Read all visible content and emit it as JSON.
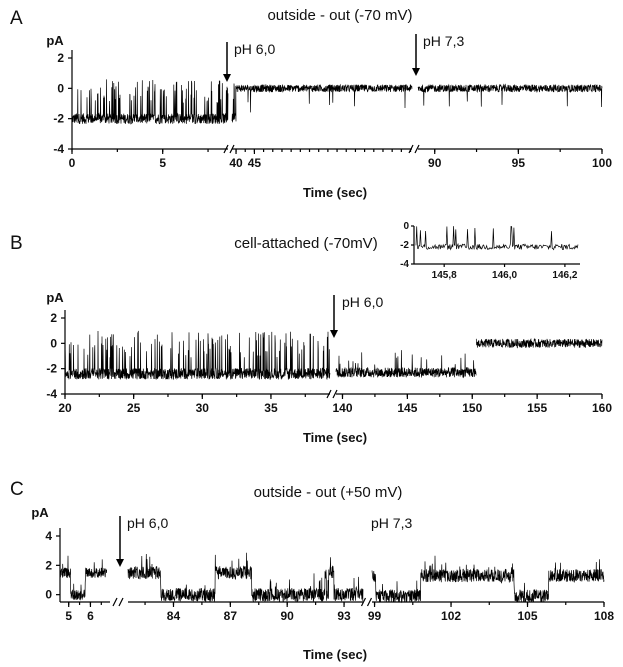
{
  "chart_data": [
    {
      "type": "line",
      "panel": "A",
      "title": "outside - out (-70 mV)",
      "ylabel": "pA",
      "xlabel": "Time (sec)",
      "ylim": [
        -4,
        2
      ],
      "y_ticks": [
        2,
        0,
        -2,
        -4
      ],
      "x_segments": [
        {
          "range": [
            0,
            8.6
          ],
          "ticks": [
            0,
            5
          ]
        },
        {
          "range": [
            38.9,
            87.9
          ],
          "ticks": [
            40,
            45
          ]
        },
        {
          "range": [
            89.0,
            100
          ],
          "ticks": [
            90,
            95,
            100
          ]
        }
      ],
      "series": [
        {
          "segments": [
            {
              "from": 0,
              "to": 8.6,
              "baseline": -2.0,
              "noise": 0.35,
              "events": "openings",
              "event_height": 2.0
            },
            {
              "from": 38.9,
              "to": 40.0,
              "baseline": -2.0,
              "noise": 0.35,
              "events": "openings",
              "event_height": 2.0
            },
            {
              "from": 40.0,
              "to": 87.9,
              "baseline": 0.0,
              "noise": 0.25,
              "events": "sparse_down",
              "event_height": 1.5
            },
            {
              "from": 89.0,
              "to": 100,
              "baseline": 0.0,
              "noise": 0.25,
              "events": "sparse_down",
              "event_height": 1.2
            }
          ]
        }
      ],
      "annotations": [
        {
          "label": "pH 6,0",
          "x": 38.5
        },
        {
          "label": "pH 7,3",
          "x": 88.0
        }
      ]
    },
    {
      "type": "line",
      "panel": "B",
      "title": "cell-attached (-70mV)",
      "ylabel": "pA",
      "xlabel": "Time (sec)",
      "ylim": [
        -4,
        2
      ],
      "y_ticks": [
        2,
        0,
        -2,
        -4
      ],
      "x_segments": [
        {
          "range": [
            20,
            39.3
          ],
          "ticks": [
            20,
            25,
            30,
            35
          ]
        },
        {
          "range": [
            139.5,
            160
          ],
          "ticks": [
            140,
            145,
            150,
            155,
            160
          ]
        }
      ],
      "series": [
        {
          "segments": [
            {
              "from": 20,
              "to": 39.3,
              "baseline": -2.4,
              "noise": 0.45,
              "events": "openings",
              "event_height": 2.6
            },
            {
              "from": 139.5,
              "to": 150.3,
              "baseline": -2.3,
              "noise": 0.4,
              "events": "sparse_up",
              "event_height": 1.2
            },
            {
              "from": 150.3,
              "to": 160,
              "baseline": 0.0,
              "noise": 0.35,
              "events": "none",
              "event_height": 0
            }
          ]
        }
      ],
      "annotations": [
        {
          "label": "pH 6,0",
          "x": 139.0
        }
      ],
      "inset": {
        "xlim": [
          145.7,
          146.25
        ],
        "ylim": [
          -4,
          0
        ],
        "x_ticks": [
          145.8,
          146.0,
          146.2
        ],
        "x_tick_labels": [
          "145,8",
          "146,0",
          "146,2"
        ],
        "y_ticks": [
          0,
          -2,
          -4
        ],
        "baseline": -2.2,
        "noise": 0.3
      }
    },
    {
      "type": "line",
      "panel": "C",
      "title": "outside - out (+50 mV)",
      "ylabel": "pA",
      "xlabel": "Time (sec)",
      "ylim": [
        -0.5,
        4
      ],
      "y_ticks": [
        4,
        2,
        0
      ],
      "x_segments": [
        {
          "range": [
            4.6,
            6.9
          ],
          "ticks": [
            5,
            6
          ]
        },
        {
          "range": [
            81.6,
            94.0
          ],
          "ticks": [
            84,
            87,
            90,
            93
          ]
        },
        {
          "range": [
            98.9,
            108
          ],
          "ticks": [
            99,
            102,
            105,
            108
          ]
        }
      ],
      "series": [
        {
          "segments": [
            {
              "from": 4.6,
              "to": 6.75,
              "baseline": 1.5,
              "noise": 0.35,
              "events": "bursts",
              "event_height": 1.5
            },
            {
              "from": 81.6,
              "to": 94.0,
              "baseline": 1.5,
              "noise": 0.45,
              "events": "bursts",
              "event_height": 1.5
            },
            {
              "from": 98.9,
              "to": 108,
              "baseline": 1.3,
              "noise": 0.45,
              "events": "bursts",
              "event_height": 1.4
            }
          ]
        }
      ],
      "annotations": [
        {
          "label": "pH 6,0",
          "x": 80.0
        },
        {
          "label": "pH 7,3",
          "x": 97.0
        }
      ]
    }
  ],
  "panel_letters": [
    "A",
    "B",
    "C"
  ]
}
